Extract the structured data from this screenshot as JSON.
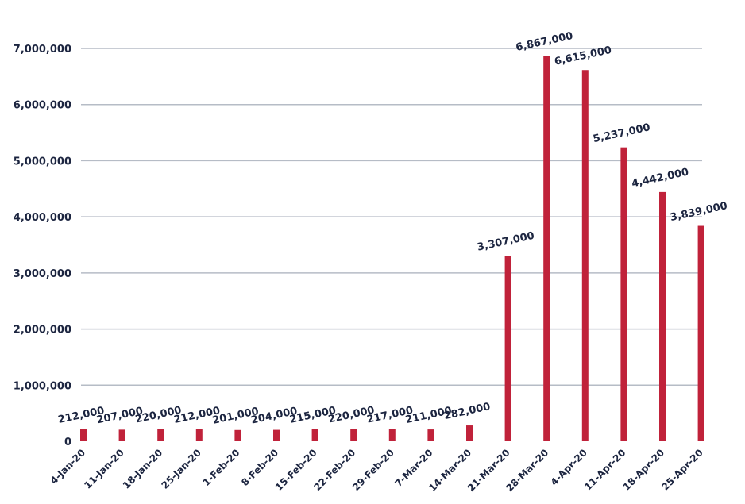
{
  "chart_data": {
    "type": "bar",
    "title": "",
    "xlabel": "",
    "ylabel": "",
    "categories": [
      "4-Jan-20",
      "11-Jan-20",
      "18-Jan-20",
      "25-Jan-20",
      "1-Feb-20",
      "8-Feb-20",
      "15-Feb-20",
      "22-Feb-20",
      "29-Feb-20",
      "7-Mar-20",
      "14-Mar-20",
      "21-Mar-20",
      "28-Mar-20",
      "4-Apr-20",
      "11-Apr-20",
      "18-Apr-20",
      "25-Apr-20"
    ],
    "values": [
      212000,
      207000,
      220000,
      212000,
      201000,
      204000,
      215000,
      220000,
      217000,
      211000,
      282000,
      3307000,
      6867000,
      6615000,
      5237000,
      4442000,
      3839000
    ],
    "data_labels": [
      "212,000",
      "207,000",
      "220,000",
      "212,000",
      "201,000",
      "204,000",
      "215,000",
      "220,000",
      "217,000",
      "211,000",
      "282,000",
      "3,307,000",
      "6,867,000",
      "6,615,000",
      "5,237,000",
      "4,442,000",
      "3,839,000"
    ],
    "ylim": [
      0,
      7000000
    ],
    "yticks": [
      0,
      1000000,
      2000000,
      3000000,
      4000000,
      5000000,
      6000000,
      7000000
    ],
    "ytick_labels": [
      "0",
      "1,000,000",
      "2,000,000",
      "3,000,000",
      "4,000,000",
      "5,000,000",
      "6,000,000",
      "7,000,000"
    ],
    "grid": true,
    "legend": "none",
    "colors": {
      "bar": "#c0223a",
      "grid": "#b6bcc6",
      "text": "#1c2540"
    }
  }
}
